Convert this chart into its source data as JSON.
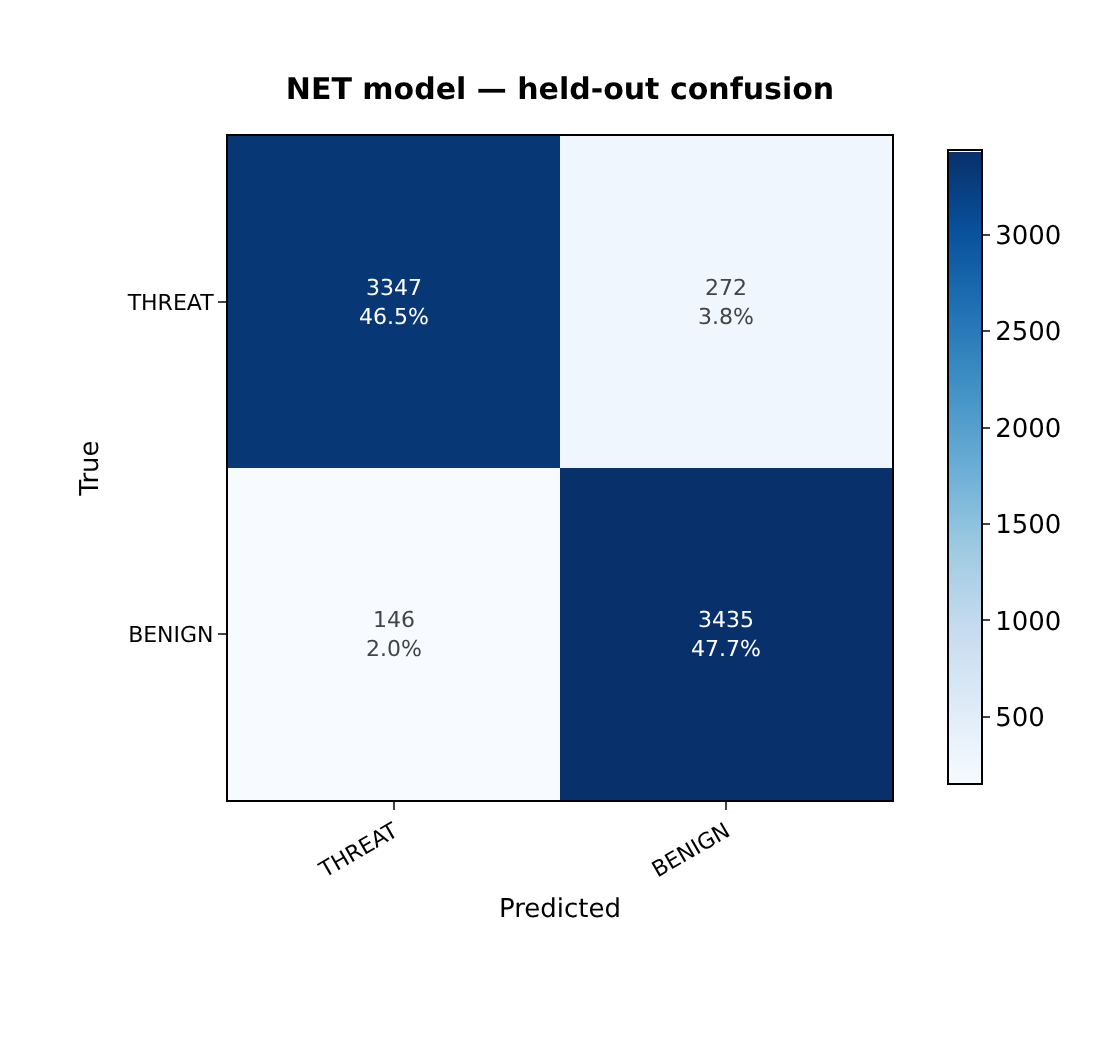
{
  "chart_data": {
    "type": "heatmap",
    "title": "NET model — held-out confusion",
    "xlabel": "Predicted",
    "ylabel": "True",
    "categories": [
      "THREAT",
      "BENIGN"
    ],
    "y_categories": [
      "THREAT",
      "BENIGN"
    ],
    "cells": [
      [
        3347,
        272
      ],
      [
        146,
        3435
      ]
    ],
    "cell_labels": [
      [
        "3347\n46.5%",
        "272\n3.8%"
      ],
      [
        "146\n2.0%",
        "3435\n47.7%"
      ]
    ],
    "clim": [
      146,
      3435
    ],
    "cticks": [
      500,
      1000,
      1500,
      2000,
      2500,
      3000
    ]
  }
}
